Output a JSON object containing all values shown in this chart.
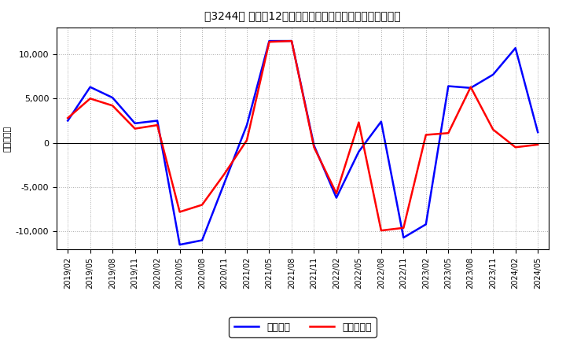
{
  "title": "［3244］ 利益だ12か月移動合計の対前年同期増減額の推移",
  "ylabel": "（百万円）",
  "background_color": "#ffffff",
  "plot_bg_color": "#ffffff",
  "grid_color": "#aaaaaa",
  "line_color_blue": "#0000ff",
  "line_color_red": "#ff0000",
  "legend_blue": "経常利益",
  "legend_red": "当期純利益",
  "ylim": [
    -12000,
    13000
  ],
  "yticks": [
    -10000,
    -5000,
    0,
    5000,
    10000
  ],
  "dates": [
    "2019/02",
    "2019/05",
    "2019/08",
    "2019/11",
    "2020/02",
    "2020/05",
    "2020/08",
    "2020/11",
    "2021/02",
    "2021/05",
    "2021/08",
    "2021/11",
    "2022/02",
    "2022/05",
    "2022/08",
    "2022/11",
    "2023/02",
    "2023/05",
    "2023/08",
    "2023/11",
    "2024/02",
    "2024/05"
  ],
  "blue_values": [
    2500,
    6300,
    5100,
    2200,
    2500,
    -11500,
    -11000,
    -4500,
    2000,
    11500,
    11500,
    -300,
    -6200,
    -1000,
    2400,
    -10700,
    -9200,
    6400,
    6200,
    7700,
    10700,
    1200
  ],
  "red_values": [
    2800,
    5000,
    4200,
    1600,
    2000,
    -7800,
    -7000,
    -3500,
    300,
    11400,
    11500,
    -500,
    -5700,
    2300,
    -9900,
    -9600,
    900,
    1100,
    6300,
    1500,
    -500,
    -200
  ]
}
